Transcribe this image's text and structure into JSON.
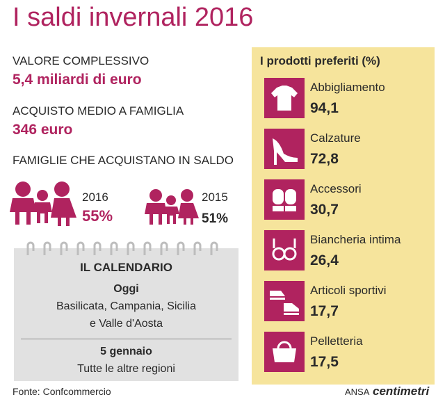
{
  "title": "I saldi invernali 2016",
  "stats": [
    {
      "label": "VALORE COMPLESSIVO",
      "value": "5,4 miliardi di euro"
    },
    {
      "label": "ACQUISTO MEDIO A FAMIGLIA",
      "value": "346 euro"
    }
  ],
  "families": {
    "label": "FAMIGLIE CHE ACQUISTANO IN SALDO",
    "years": [
      {
        "year": "2016",
        "share": "55%"
      },
      {
        "year": "2015",
        "share": "51%"
      }
    ]
  },
  "calendar": {
    "title": "IL CALENDARIO",
    "entries": [
      {
        "date": "Oggi",
        "text": [
          "Basilicata, Campania, Sicilia",
          "e Valle d'Aosta"
        ]
      },
      {
        "date": "5 gennaio",
        "text": [
          "Tutte le altre regioni"
        ]
      }
    ]
  },
  "products": {
    "title": "I prodotti preferiti (%)",
    "items": [
      {
        "name": "Abbigliamento",
        "value": "94,1"
      },
      {
        "name": "Calzature",
        "value": "72,8"
      },
      {
        "name": "Accessori",
        "value": "30,7"
      },
      {
        "name": "Biancheria intima",
        "value": "26,4"
      },
      {
        "name": "Articoli sportivi",
        "value": "17,7"
      },
      {
        "name": "Pelletteria",
        "value": "17,5"
      }
    ]
  },
  "source": "Fonte: Confcommercio",
  "credit": {
    "agency": "ANSA",
    "brand": "centimetri"
  }
}
